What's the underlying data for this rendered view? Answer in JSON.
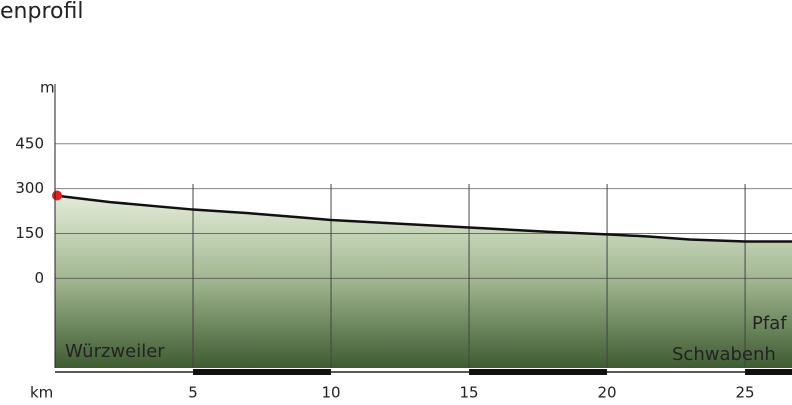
{
  "chart_data": {
    "type": "area",
    "title": "enprofil",
    "y_label": "m",
    "x_label": "km",
    "x": [
      0,
      2,
      5,
      7,
      9,
      10,
      12,
      15,
      18,
      20,
      21.5,
      23,
      25,
      26.7
    ],
    "series": [
      {
        "color": "#111111",
        "values": [
          277,
          255,
          230,
          218,
          203,
          195,
          185,
          170,
          155,
          147,
          140,
          130,
          123,
          123
        ]
      }
    ],
    "xlim": [
      0,
      26.7
    ],
    "xticks": [
      5,
      10,
      15,
      20,
      25
    ],
    "ylim": [
      -300,
      650
    ],
    "yticks": [
      0,
      150,
      300,
      450
    ],
    "grid": true,
    "annotations": [
      "Würzweiler",
      "Pfaf",
      "Schwabenh"
    ]
  }
}
